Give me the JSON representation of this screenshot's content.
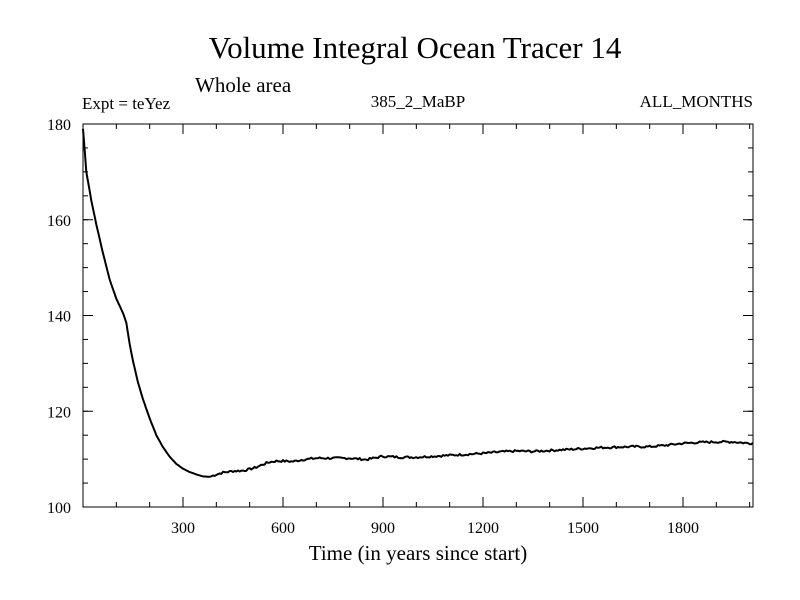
{
  "chart_data": {
    "type": "line",
    "title": "Volume Integral Ocean Tracer 14",
    "subtitle": "Whole area",
    "experiment_label": "Expt = teYez",
    "center_label": "385_2_MaBP",
    "right_label": "ALL_MONTHS",
    "xlabel": "Time (in years since start)",
    "ylabel": "",
    "xlim": [
      0,
      2010
    ],
    "ylim": [
      100,
      180
    ],
    "x_ticks": [
      300,
      600,
      900,
      1200,
      1500,
      1800
    ],
    "x_tick_labels": [
      "300",
      "600",
      "900",
      "1200",
      "1500",
      "1800"
    ],
    "x_minor_step": 100,
    "y_ticks": [
      100,
      120,
      140,
      160,
      180
    ],
    "y_tick_labels": [
      "100",
      "120",
      "140",
      "160",
      "180"
    ],
    "y_minor_step": 5,
    "grid": false,
    "series": [
      {
        "name": "Volume Integral Ocean Tracer 14",
        "color": "#000000",
        "points": [
          [
            0,
            179
          ],
          [
            10,
            170
          ],
          [
            25,
            164
          ],
          [
            40,
            159
          ],
          [
            60,
            153
          ],
          [
            80,
            147.5
          ],
          [
            100,
            143.5
          ],
          [
            120,
            140.5
          ],
          [
            130,
            138.5
          ],
          [
            140,
            134
          ],
          [
            150,
            130.5
          ],
          [
            165,
            126
          ],
          [
            180,
            122.5
          ],
          [
            200,
            118.5
          ],
          [
            220,
            115
          ],
          [
            240,
            112.5
          ],
          [
            260,
            110.5
          ],
          [
            280,
            109
          ],
          [
            300,
            108
          ],
          [
            320,
            107.3
          ],
          [
            340,
            106.8
          ],
          [
            360,
            106.4
          ],
          [
            380,
            106.3
          ],
          [
            400,
            106.8
          ],
          [
            420,
            107.2
          ],
          [
            450,
            107.5
          ],
          [
            480,
            107.6
          ],
          [
            500,
            107.9
          ],
          [
            520,
            108.3
          ],
          [
            540,
            108.9
          ],
          [
            560,
            109.4
          ],
          [
            580,
            109.6
          ],
          [
            600,
            109.6
          ],
          [
            630,
            109.5
          ],
          [
            660,
            109.9
          ],
          [
            700,
            110.2
          ],
          [
            750,
            110.2
          ],
          [
            800,
            110.2
          ],
          [
            850,
            109.9
          ],
          [
            900,
            110.6
          ],
          [
            950,
            110.4
          ],
          [
            1000,
            110.4
          ],
          [
            1050,
            110.6
          ],
          [
            1100,
            110.8
          ],
          [
            1150,
            111.0
          ],
          [
            1200,
            111.2
          ],
          [
            1250,
            111.5
          ],
          [
            1300,
            111.7
          ],
          [
            1350,
            111.6
          ],
          [
            1400,
            111.8
          ],
          [
            1450,
            112.0
          ],
          [
            1500,
            112.2
          ],
          [
            1550,
            112.4
          ],
          [
            1600,
            112.5
          ],
          [
            1650,
            112.6
          ],
          [
            1700,
            112.6
          ],
          [
            1750,
            112.9
          ],
          [
            1800,
            113.3
          ],
          [
            1850,
            113.5
          ],
          [
            1900,
            113.6
          ],
          [
            1950,
            113.6
          ],
          [
            2000,
            113.3
          ],
          [
            2010,
            113.4
          ]
        ]
      }
    ]
  }
}
